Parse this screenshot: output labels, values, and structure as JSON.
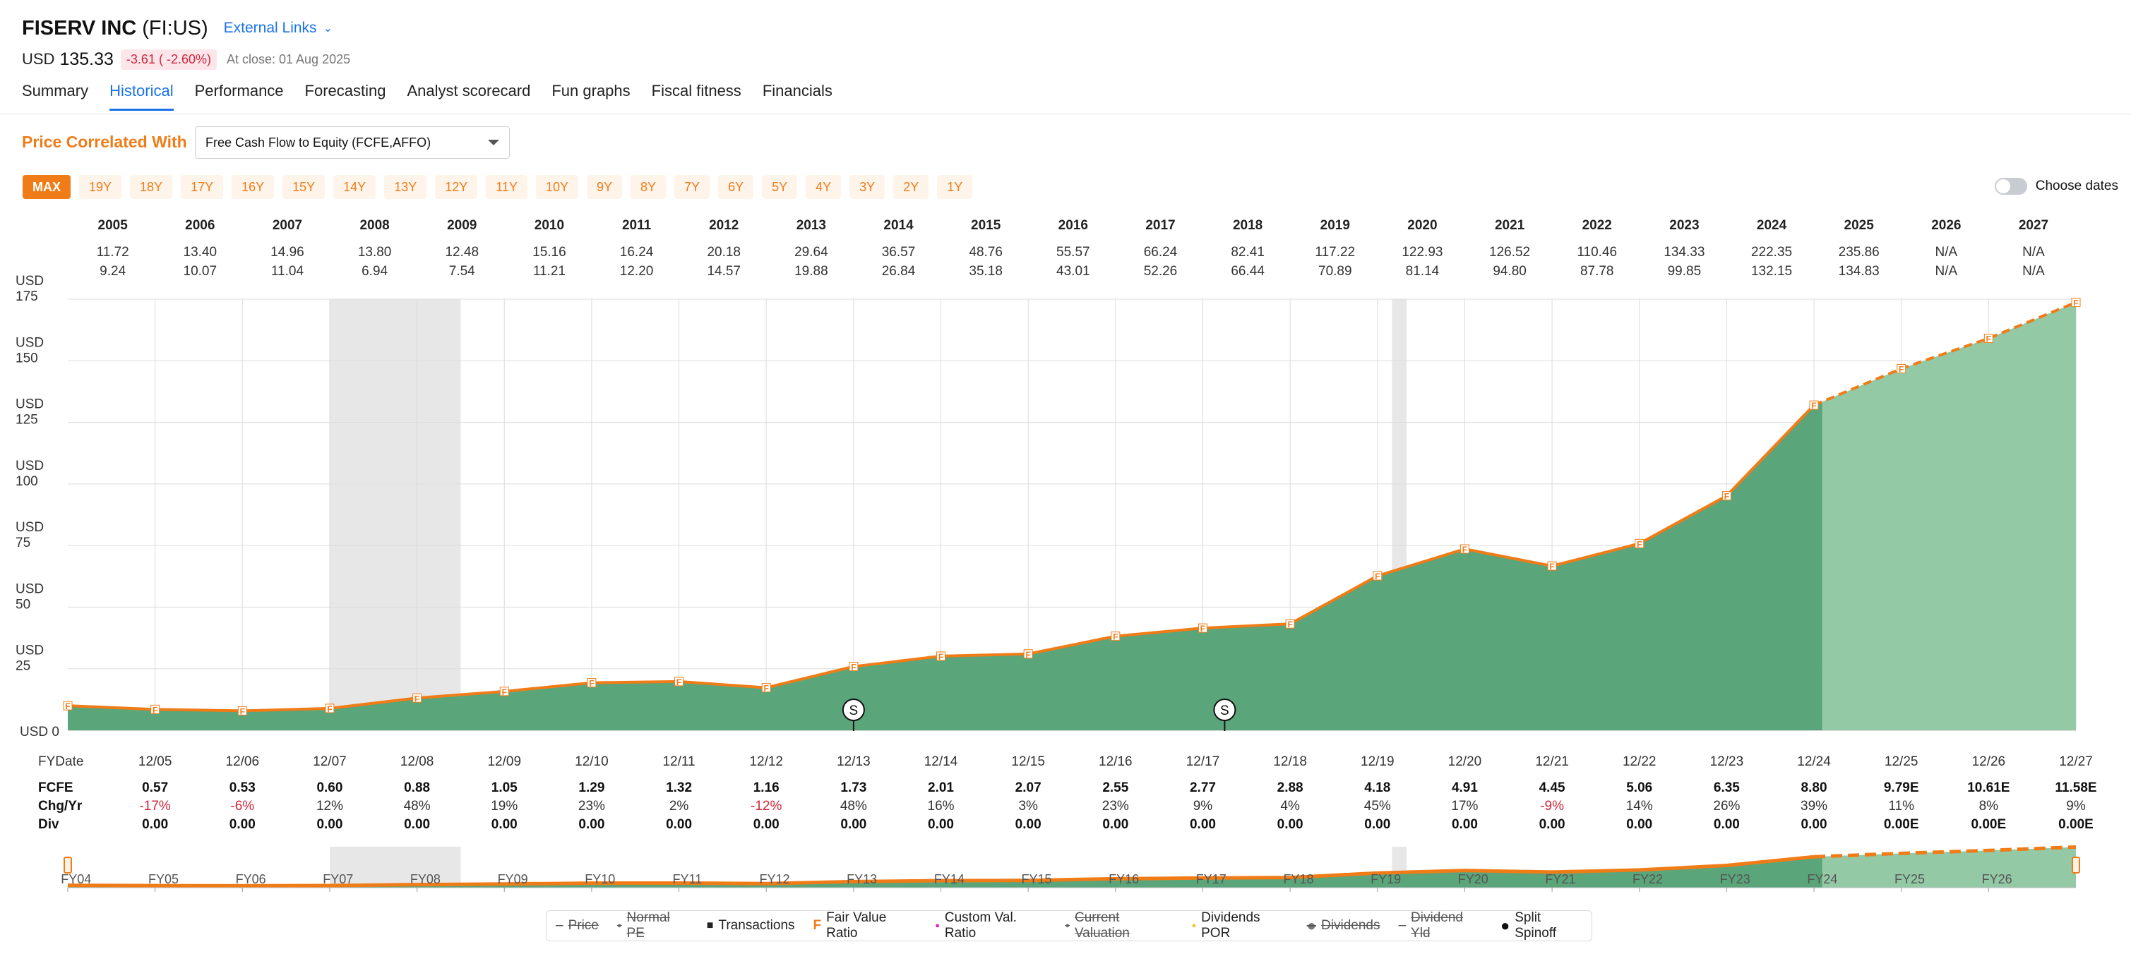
{
  "header": {
    "company": "FISERV INC",
    "ticker": "(FI:US)",
    "external_links": "External Links",
    "currency": "USD",
    "price": "135.33",
    "change": "-3.61 ( -2.60%)",
    "close_note": "At close: 01 Aug 2025"
  },
  "tabs": [
    {
      "label": "Summary"
    },
    {
      "label": "Historical"
    },
    {
      "label": "Performance"
    },
    {
      "label": "Forecasting"
    },
    {
      "label": "Analyst scorecard"
    },
    {
      "label": "Fun graphs"
    },
    {
      "label": "Fiscal fitness"
    },
    {
      "label": "Financials"
    }
  ],
  "active_tab": "Historical",
  "correlation": {
    "label": "Price Correlated With",
    "selected": "Free Cash Flow to Equity (FCFE,AFFO)"
  },
  "ranges": [
    "MAX",
    "19Y",
    "18Y",
    "17Y",
    "16Y",
    "15Y",
    "14Y",
    "13Y",
    "12Y",
    "11Y",
    "10Y",
    "9Y",
    "8Y",
    "7Y",
    "6Y",
    "5Y",
    "4Y",
    "3Y",
    "2Y",
    "1Y"
  ],
  "active_range": "MAX",
  "choose_dates_label": "Choose dates",
  "legend": [
    {
      "label": "Price",
      "symbol": "dash",
      "enabled": false,
      "color": "#555555"
    },
    {
      "label": "Normal PE",
      "symbol": "dot",
      "enabled": false,
      "color": "#777777"
    },
    {
      "label": "Transactions",
      "symbol": "square",
      "enabled": true,
      "color": "#222222"
    },
    {
      "label": "Fair Value Ratio",
      "symbol": "F",
      "enabled": true,
      "color": "#f07c18"
    },
    {
      "label": "Custom Val. Ratio",
      "symbol": "dot",
      "enabled": true,
      "color": "#e020c8"
    },
    {
      "label": "Current Valuation",
      "symbol": "dot",
      "enabled": false,
      "color": "#777777"
    },
    {
      "label": "Dividends POR",
      "symbol": "dot",
      "enabled": true,
      "color": "#f2c230"
    },
    {
      "label": "Dividends",
      "symbol": "bigdot",
      "enabled": false,
      "color": "#777777"
    },
    {
      "label": "Dividend Yld",
      "symbol": "dash",
      "enabled": false,
      "color": "#777777"
    },
    {
      "label": "Split Spinoff",
      "symbol": "bigdot",
      "enabled": true,
      "color": "#111111"
    }
  ],
  "chart_data": {
    "type": "area",
    "y_axis": {
      "currency": "USD",
      "ticks": [
        0,
        25,
        50,
        75,
        100,
        125,
        150,
        175
      ],
      "ylim": [
        0,
        175
      ]
    },
    "year_columns": [
      "2005",
      "2006",
      "2007",
      "2008",
      "2009",
      "2010",
      "2011",
      "2012",
      "2013",
      "2014",
      "2015",
      "2016",
      "2017",
      "2018",
      "2019",
      "2020",
      "2021",
      "2022",
      "2023",
      "2024",
      "2025",
      "2026",
      "2027"
    ],
    "price_high": [
      "11.72",
      "13.40",
      "14.96",
      "13.80",
      "12.48",
      "15.16",
      "16.24",
      "20.18",
      "29.64",
      "36.57",
      "48.76",
      "55.57",
      "66.24",
      "82.41",
      "117.22",
      "122.93",
      "126.52",
      "110.46",
      "134.33",
      "222.35",
      "235.86",
      "N/A",
      "N/A"
    ],
    "price_low": [
      "9.24",
      "10.07",
      "11.04",
      "6.94",
      "7.54",
      "11.21",
      "12.20",
      "14.57",
      "19.88",
      "26.84",
      "35.18",
      "43.01",
      "52.26",
      "66.44",
      "70.89",
      "81.14",
      "94.80",
      "87.78",
      "99.85",
      "132.15",
      "134.83",
      "N/A",
      "N/A"
    ],
    "fy_label": "FYDate",
    "fy_dates": [
      "12/05",
      "12/06",
      "12/07",
      "12/08",
      "12/09",
      "12/10",
      "12/11",
      "12/12",
      "12/13",
      "12/14",
      "12/15",
      "12/16",
      "12/17",
      "12/18",
      "12/19",
      "12/20",
      "12/21",
      "12/22",
      "12/23",
      "12/24",
      "12/25",
      "12/26",
      "12/27"
    ],
    "fcfe_label": "FCFE",
    "fcfe_text": [
      "0.57",
      "0.53",
      "0.60",
      "0.88",
      "1.05",
      "1.29",
      "1.32",
      "1.16",
      "1.73",
      "2.01",
      "2.07",
      "2.55",
      "2.77",
      "2.88",
      "4.18",
      "4.91",
      "4.45",
      "5.06",
      "6.35",
      "8.80",
      "9.79E",
      "10.61E",
      "11.58E"
    ],
    "chg_label": "Chg/Yr",
    "chg_yr": [
      "-17%",
      "-6%",
      "12%",
      "48%",
      "19%",
      "23%",
      "2%",
      "-12%",
      "48%",
      "16%",
      "3%",
      "23%",
      "9%",
      "4%",
      "45%",
      "17%",
      "-9%",
      "14%",
      "26%",
      "39%",
      "11%",
      "8%",
      "9%"
    ],
    "div_label": "Div",
    "div_text": [
      "0.00",
      "0.00",
      "0.00",
      "0.00",
      "0.00",
      "0.00",
      "0.00",
      "0.00",
      "0.00",
      "0.00",
      "0.00",
      "0.00",
      "0.00",
      "0.00",
      "0.00",
      "0.00",
      "0.00",
      "0.00",
      "0.00",
      "0.00",
      "0.00E",
      "0.00E",
      "0.00E"
    ],
    "fair_value_x": [
      "12/04",
      "12/05",
      "12/06",
      "12/07",
      "12/08",
      "12/09",
      "12/10",
      "12/11",
      "12/12",
      "12/13",
      "12/14",
      "12/15",
      "12/16",
      "12/17",
      "12/18",
      "12/19",
      "12/20",
      "12/21",
      "12/22",
      "12/23",
      "12/24",
      "12/25",
      "12/26",
      "12/27"
    ],
    "fair_value": [
      10.0,
      8.5,
      7.9,
      8.9,
      13.1,
      15.8,
      19.3,
      19.8,
      17.3,
      25.9,
      30.1,
      31.0,
      38.2,
      41.5,
      43.2,
      62.7,
      73.6,
      66.7,
      75.8,
      95.2,
      132.0,
      146.8,
      159.1,
      173.7
    ],
    "estimate_from_index": 21,
    "recession_shading": [
      [
        "2007-12",
        "2009-06"
      ],
      [
        "2020-02",
        "2020-04"
      ]
    ],
    "split_markers": [
      {
        "x": "2013-12",
        "label": "S"
      },
      {
        "x": "2018-03",
        "label": "S"
      }
    ],
    "navigator_labels": [
      "FY04",
      "FY05",
      "FY06",
      "FY07",
      "FY08",
      "FY09",
      "FY10",
      "FY11",
      "FY12",
      "FY13",
      "FY14",
      "FY15",
      "FY16",
      "FY17",
      "FY18",
      "FY19",
      "FY20",
      "FY21",
      "FY22",
      "FY23",
      "FY24",
      "FY25",
      "FY26"
    ],
    "colors": {
      "area": "#5aa57a",
      "area_estimate": "#94c9a6",
      "line": "#f07c18",
      "grid": "#dcdcdc",
      "recession": "#e7e7e7"
    }
  }
}
